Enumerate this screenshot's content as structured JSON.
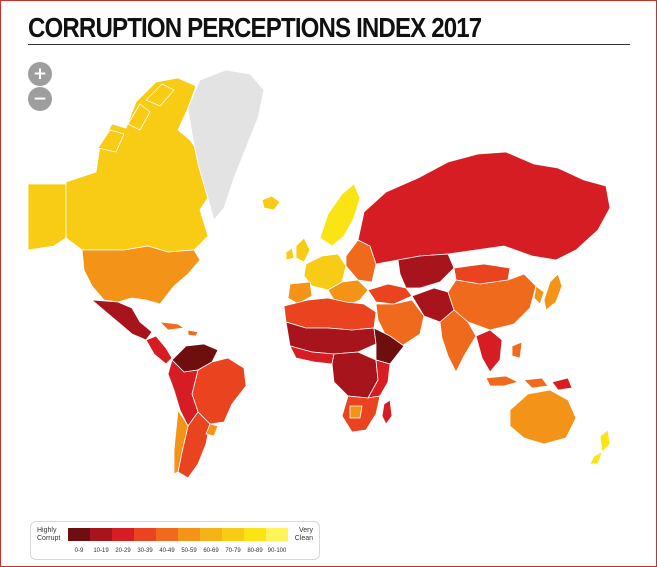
{
  "title": "CORRUPTION PERCEPTIONS INDEX 2017",
  "zoom": {
    "in_label": "+",
    "out_label": "−"
  },
  "legend": {
    "low_label": [
      "Highly",
      "Corrupt"
    ],
    "high_label": [
      "Very",
      "Clean"
    ],
    "bins": [
      {
        "label": "0-9",
        "color": "#6e0e0e"
      },
      {
        "label": "10-19",
        "color": "#a8141b"
      },
      {
        "label": "20-29",
        "color": "#d71d24"
      },
      {
        "label": "30-39",
        "color": "#e9431f"
      },
      {
        "label": "40-49",
        "color": "#ef6a1c"
      },
      {
        "label": "50-59",
        "color": "#f39419"
      },
      {
        "label": "60-69",
        "color": "#f6b318"
      },
      {
        "label": "70-79",
        "color": "#f8cb14"
      },
      {
        "label": "80-89",
        "color": "#fbe414"
      },
      {
        "label": "90-100",
        "color": "#fff45a"
      }
    ],
    "no_data_color": "#e3e3e3"
  }
}
